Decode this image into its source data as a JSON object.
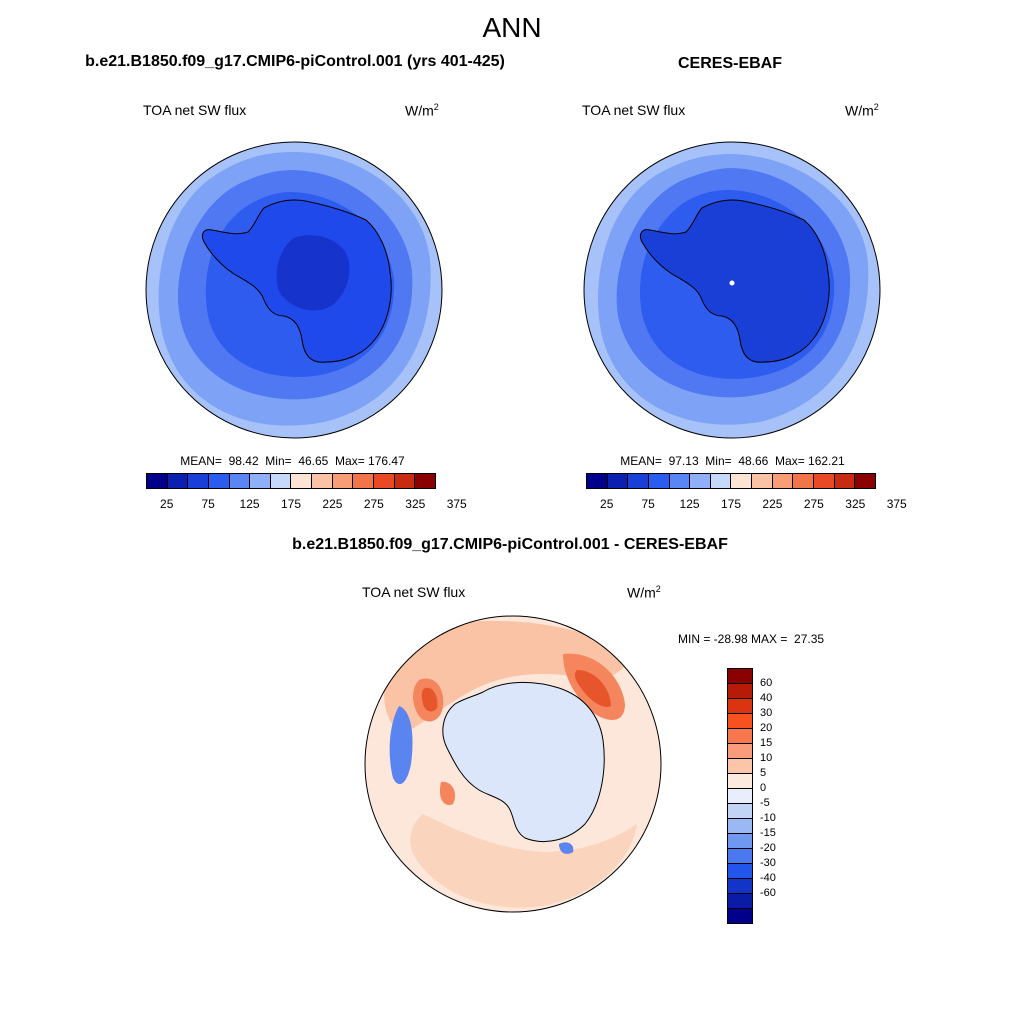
{
  "figure": {
    "title": "ANN"
  },
  "panels": {
    "model": {
      "title": "b.e21.B1850.f09_g17.CMIP6-piControl.001 (yrs 401-425)",
      "variable": "TOA net SW flux",
      "units": "W/m",
      "units_sup": "2",
      "stats": "MEAN=  98.42  Min=  46.65  Max= 176.47",
      "mean": 98.42,
      "min": 46.65,
      "max": 176.47
    },
    "obs": {
      "title": "CERES-EBAF",
      "variable": "TOA net SW flux",
      "units": "W/m",
      "units_sup": "2",
      "stats": "MEAN=  97.13  Min=  48.66  Max= 162.21",
      "mean": 97.13,
      "min": 48.66,
      "max": 162.21
    },
    "diff": {
      "title": "b.e21.B1850.f09_g17.CMIP6-piControl.001 - CERES-EBAF",
      "variable": "TOA net SW flux",
      "units": "W/m",
      "units_sup": "2",
      "stats": "MIN = -28.98 MAX =  27.35",
      "min": -28.98,
      "max": 27.35
    }
  },
  "abs_colorbar": {
    "colors": [
      "#00008b",
      "#0b1fb0",
      "#1a3fd6",
      "#2a5cf0",
      "#5a86f5",
      "#8fb0f8",
      "#c6d9fb",
      "#fde3d3",
      "#fbc3a5",
      "#f79e76",
      "#f2754a",
      "#e94a25",
      "#c92a12",
      "#8b0000"
    ],
    "labels": [
      "25",
      "75",
      "125",
      "175",
      "225",
      "275",
      "325",
      "375"
    ]
  },
  "diff_colorbar": {
    "colors": [
      "#8b0000",
      "#b51b06",
      "#dc3410",
      "#f6511e",
      "#f7774f",
      "#f89c7c",
      "#fbc6a8",
      "#fdeadf",
      "#e8eefb",
      "#c2d4f6",
      "#9ab8f3",
      "#7098f1",
      "#4a78ee",
      "#2256ea",
      "#1235c8",
      "#0a1ca5",
      "#00008b"
    ],
    "labels": [
      "60",
      "40",
      "30",
      "20",
      "15",
      "10",
      "5",
      "0",
      "-5",
      "-10",
      "-15",
      "-20",
      "-30",
      "-40",
      "-60"
    ]
  },
  "map_colors": {
    "ocean_outer": "#a6c2f8",
    "ocean_mid": "#7ea3f6",
    "ocean_inner": "#4f78f2",
    "sea_ice": "#2d5cef",
    "land": "#1f49ea",
    "plateau": "#1634cc",
    "diff_base": "#fde6da",
    "diff_blue_light": "#dbe6fb",
    "diff_red": "#f5855c",
    "diff_red_strong": "#e7552c",
    "diff_blue": "#5a84f0"
  }
}
